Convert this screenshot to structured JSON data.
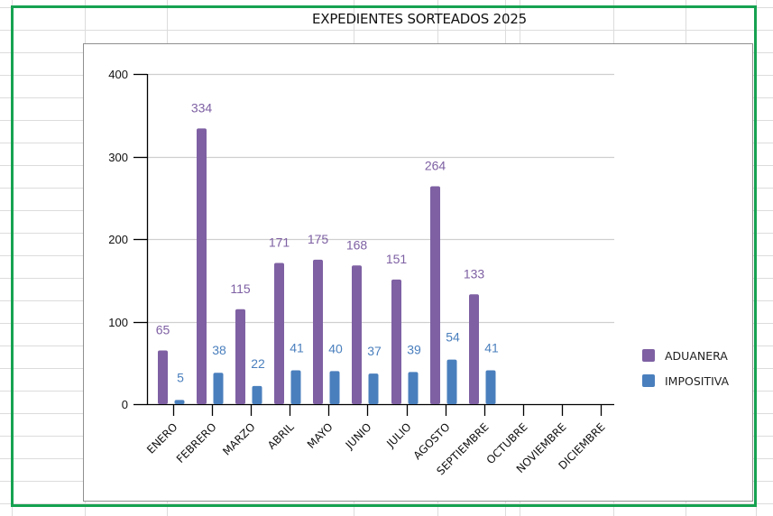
{
  "chart_data": {
    "type": "bar",
    "title": "EXPEDIENTES SORTEADOS 2025",
    "xlabel": "",
    "ylabel": "",
    "ylim": [
      0,
      400
    ],
    "yticks": [
      0,
      100,
      200,
      300,
      400
    ],
    "grid": true,
    "legend_position": "right",
    "categories": [
      "ENERO",
      "FEBRERO",
      "MARZO",
      "ABRIL",
      "MAYO",
      "JUNIO",
      "JULIO",
      "AGOSTO",
      "SEPTIEMBRE",
      "OCTUBRE",
      "NOVIEMBRE",
      "DICIEMBRE"
    ],
    "series": [
      {
        "name": "ADUANERA",
        "color": "#7e60a3",
        "values": [
          65,
          334,
          115,
          171,
          175,
          168,
          151,
          264,
          133,
          null,
          null,
          null
        ]
      },
      {
        "name": "IMPOSITIVA",
        "color": "#4a7fbd",
        "values": [
          5,
          38,
          22,
          41,
          40,
          37,
          39,
          54,
          41,
          null,
          null,
          null
        ]
      }
    ]
  }
}
